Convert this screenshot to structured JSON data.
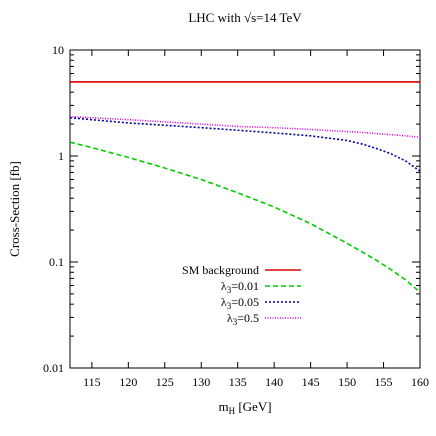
{
  "chart_data": {
    "type": "line",
    "title": "LHC with √s=14 TeV",
    "xlabel": "m",
    "xlabel_sub": "H",
    "xlabel_unit": " [GeV]",
    "ylabel": "Cross-Section [fb]",
    "xlim": [
      112,
      160
    ],
    "ylim": [
      0.01,
      10
    ],
    "yscale": "log",
    "grid": false,
    "legend_position": "center-left",
    "x_ticks": [
      115,
      120,
      125,
      130,
      135,
      140,
      145,
      150,
      155,
      160
    ],
    "y_ticks": [
      {
        "value": 0.01,
        "label": "0.01"
      },
      {
        "value": 0.1,
        "label": "0.1"
      },
      {
        "value": 1,
        "label": "1"
      },
      {
        "value": 10,
        "label": "10"
      }
    ],
    "x": [
      112,
      115,
      120,
      125,
      130,
      135,
      140,
      145,
      150,
      152,
      154,
      156,
      158,
      160
    ],
    "series": [
      {
        "name": "SM background",
        "color": "#dd0000",
        "style": "solid",
        "values": [
          5.0,
          5.0,
          5.0,
          5.0,
          5.0,
          5.0,
          5.0,
          5.0,
          5.0,
          5.0,
          5.0,
          5.0,
          5.0,
          5.0
        ]
      },
      {
        "name": "λ",
        "name_sub": "3",
        "name_suffix": "=0.01",
        "color": "#00cc00",
        "style": "dashed",
        "values": [
          1.35,
          1.2,
          0.97,
          0.77,
          0.6,
          0.45,
          0.33,
          0.23,
          0.15,
          0.125,
          0.104,
          0.085,
          0.068,
          0.052
        ]
      },
      {
        "name": "λ",
        "name_sub": "3",
        "name_suffix": "=0.05",
        "color": "#0000aa",
        "style": "dotted",
        "values": [
          2.3,
          2.2,
          2.05,
          1.95,
          1.85,
          1.75,
          1.65,
          1.55,
          1.4,
          1.3,
          1.18,
          1.05,
          0.9,
          0.72
        ]
      },
      {
        "name": "λ",
        "name_sub": "3",
        "name_suffix": "=0.5",
        "color": "#dd00dd",
        "style": "fine-dotted",
        "values": [
          2.35,
          2.3,
          2.2,
          2.1,
          2.0,
          1.9,
          1.85,
          1.78,
          1.7,
          1.67,
          1.63,
          1.59,
          1.55,
          1.5
        ]
      }
    ]
  }
}
